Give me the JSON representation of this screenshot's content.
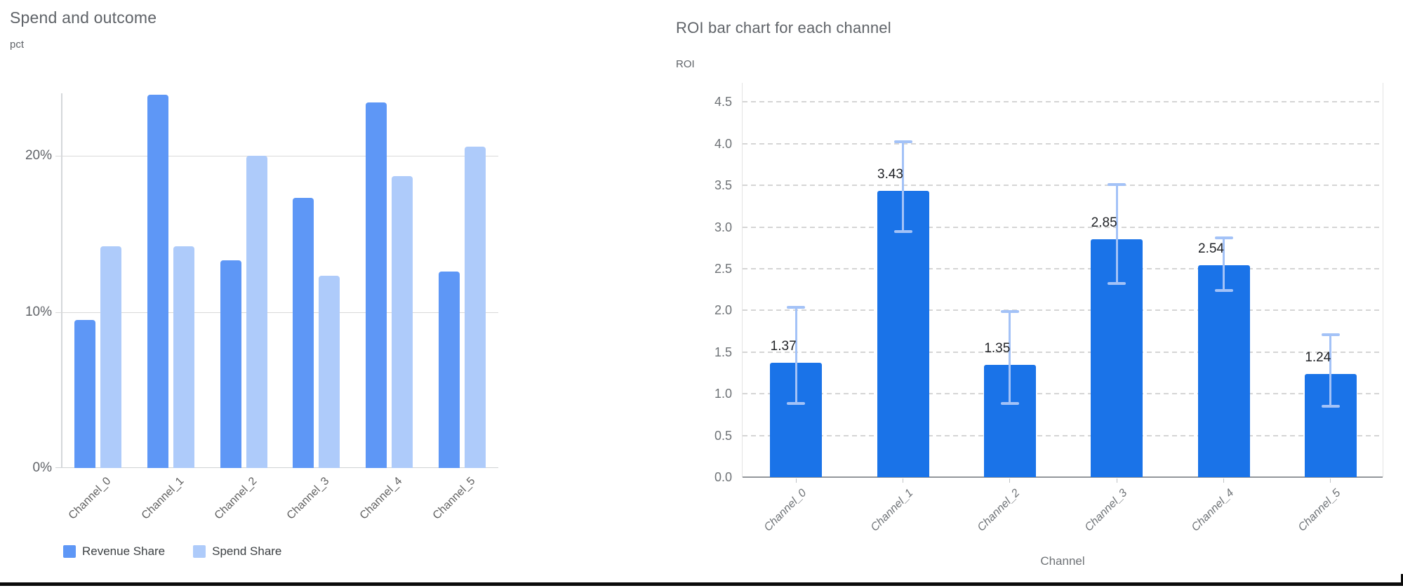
{
  "chart_data": [
    {
      "type": "bar",
      "title": "Spend and outcome",
      "ylabel": "pct",
      "xlabel": "",
      "categories": [
        "Channel_0",
        "Channel_1",
        "Channel_2",
        "Channel_3",
        "Channel_4",
        "Channel_5"
      ],
      "series": [
        {
          "name": "Revenue Share",
          "color": "#5E97F6",
          "values": [
            9.5,
            23.9,
            13.3,
            17.3,
            23.4,
            12.6
          ]
        },
        {
          "name": "Spend Share",
          "color": "#AECBFA",
          "values": [
            14.2,
            14.2,
            20.0,
            12.3,
            18.7,
            20.6
          ]
        }
      ],
      "ylim": [
        0,
        24
      ],
      "yticks": [
        {
          "value": 0,
          "label": "0%"
        },
        {
          "value": 10,
          "label": "10%"
        },
        {
          "value": 20,
          "label": "20%"
        }
      ],
      "grid": "solid",
      "legend_position": "bottom"
    },
    {
      "type": "bar",
      "title": "ROI bar chart for each channel",
      "ylabel": "ROI",
      "xlabel": "Channel",
      "categories": [
        "Channel_0",
        "Channel_1",
        "Channel_2",
        "Channel_3",
        "Channel_4",
        "Channel_5"
      ],
      "values": [
        1.37,
        3.43,
        1.35,
        2.85,
        2.54,
        1.24
      ],
      "value_labels": [
        "1.37",
        "3.43",
        "1.35",
        "2.85",
        "2.54",
        "1.24"
      ],
      "error_low": [
        0.88,
        2.95,
        0.88,
        2.32,
        2.24,
        0.85
      ],
      "error_high": [
        2.04,
        4.02,
        1.99,
        3.51,
        2.87,
        1.71
      ],
      "bar_color": "#1A73E8",
      "error_color": "#A3C2F7",
      "ylim": [
        0,
        4.73
      ],
      "yticks": [
        {
          "value": 0.0,
          "label": "0.0"
        },
        {
          "value": 0.5,
          "label": "0.5"
        },
        {
          "value": 1.0,
          "label": "1.0"
        },
        {
          "value": 1.5,
          "label": "1.5"
        },
        {
          "value": 2.0,
          "label": "2.0"
        },
        {
          "value": 2.5,
          "label": "2.5"
        },
        {
          "value": 3.0,
          "label": "3.0"
        },
        {
          "value": 3.5,
          "label": "3.5"
        },
        {
          "value": 4.0,
          "label": "4.0"
        },
        {
          "value": 4.5,
          "label": "4.5"
        }
      ],
      "grid": "dashed",
      "legend_position": "none"
    }
  ]
}
